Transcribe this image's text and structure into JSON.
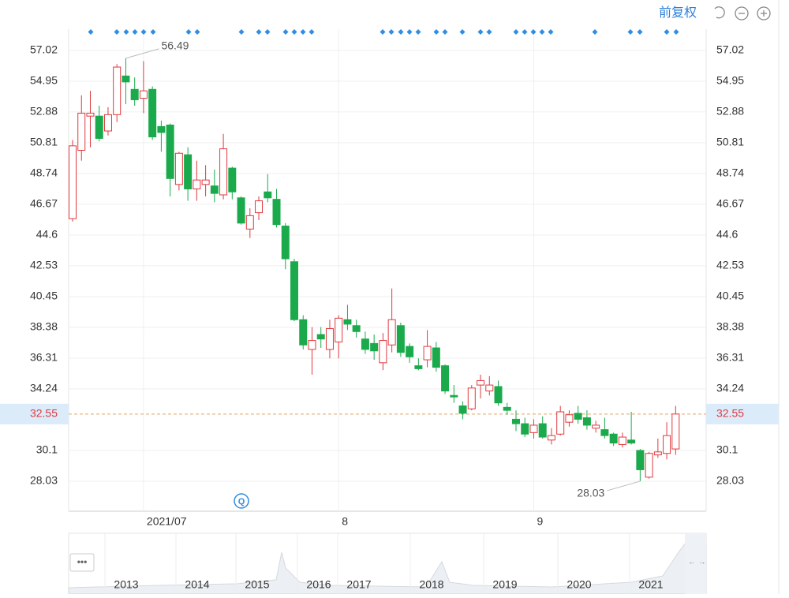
{
  "toolbar": {
    "adjust": "前复权"
  },
  "navigator": {
    "years": [
      "2013",
      "2014",
      "2015",
      "2016",
      "2017",
      "2018",
      "2019",
      "2020",
      "2021"
    ]
  },
  "chart_data": {
    "type": "candlestick",
    "categories": [
      null,
      null,
      null,
      null,
      null,
      null,
      null,
      null,
      "2021/07",
      null,
      null,
      null,
      null,
      null,
      null,
      null,
      null,
      null,
      null,
      null,
      null,
      null,
      null,
      null,
      null,
      null,
      null,
      null,
      null,
      null,
      "8",
      null,
      null,
      null,
      null,
      null,
      null,
      null,
      null,
      null,
      null,
      null,
      null,
      null,
      null,
      null,
      null,
      null,
      null,
      null,
      null,
      null,
      "9",
      null,
      null,
      null,
      null,
      null,
      null,
      null,
      null,
      null,
      null,
      null,
      null,
      null,
      null,
      null,
      null
    ],
    "open": [
      45.7,
      50.3,
      52.6,
      52.6,
      51.6,
      52.7,
      55.3,
      54.4,
      53.8,
      54.4,
      51.9,
      52.0,
      48.0,
      50.0,
      47.7,
      48.0,
      47.9,
      47.3,
      49.1,
      47.1,
      45.0,
      46.1,
      47.5,
      47.0,
      45.2,
      42.8,
      38.9,
      36.9,
      37.9,
      36.9,
      37.4,
      38.9,
      38.5,
      37.6,
      37.3,
      36.0,
      37.2,
      38.5,
      37.1,
      35.8,
      36.2,
      37.0,
      35.8,
      33.8,
      33.1,
      32.9,
      34.5,
      34.1,
      34.4,
      33.0,
      32.2,
      31.9,
      31.3,
      31.9,
      30.8,
      31.2,
      32.0,
      32.6,
      32.3,
      31.6,
      31.5,
      31.2,
      30.5,
      30.8,
      30.1,
      28.3,
      29.8,
      29.9,
      30.2
    ],
    "close": [
      50.6,
      52.8,
      52.8,
      51.1,
      52.7,
      55.9,
      54.9,
      53.7,
      54.3,
      51.2,
      51.5,
      48.4,
      50.1,
      47.7,
      48.3,
      48.3,
      47.4,
      50.4,
      47.5,
      45.4,
      45.9,
      46.9,
      47.1,
      45.3,
      43.0,
      38.9,
      37.2,
      37.5,
      37.6,
      38.3,
      39.0,
      38.6,
      38.1,
      36.9,
      36.8,
      37.5,
      38.9,
      36.7,
      36.4,
      35.6,
      37.1,
      35.7,
      34.1,
      33.7,
      32.6,
      34.3,
      34.8,
      34.5,
      33.3,
      32.8,
      31.9,
      31.2,
      31.8,
      31.0,
      31.1,
      32.7,
      32.5,
      32.2,
      31.8,
      31.8,
      31.1,
      30.6,
      31.0,
      30.6,
      28.8,
      29.9,
      30.0,
      31.1,
      32.55
    ],
    "high": [
      51.0,
      54.0,
      54.3,
      53.3,
      53.2,
      56.1,
      56.49,
      55.2,
      56.3,
      54.6,
      52.3,
      52.1,
      50.2,
      50.5,
      49.6,
      49.3,
      49.0,
      51.4,
      49.2,
      47.2,
      46.4,
      47.2,
      48.7,
      47.7,
      45.4,
      43.0,
      39.2,
      38.4,
      38.4,
      38.9,
      39.2,
      39.9,
      38.9,
      38.1,
      37.9,
      38.0,
      41.0,
      38.7,
      37.3,
      36.3,
      38.2,
      37.4,
      35.9,
      34.5,
      33.4,
      34.5,
      35.2,
      35.1,
      34.8,
      33.3,
      32.8,
      32.3,
      32.2,
      32.4,
      31.6,
      33.1,
      32.8,
      33.1,
      32.8,
      32.1,
      32.3,
      31.3,
      31.3,
      32.7,
      30.2,
      30.0,
      30.9,
      32.0,
      33.1
    ],
    "low": [
      45.5,
      49.6,
      50.5,
      50.9,
      51.3,
      52.2,
      53.4,
      53.3,
      52.8,
      51.0,
      50.2,
      47.2,
      47.6,
      46.9,
      46.9,
      47.2,
      46.8,
      47.0,
      47.0,
      45.3,
      44.4,
      45.6,
      46.8,
      45.1,
      42.3,
      38.8,
      36.9,
      35.2,
      37.0,
      36.3,
      36.3,
      38.2,
      37.7,
      36.6,
      36.2,
      35.5,
      36.7,
      36.4,
      36.0,
      35.5,
      35.7,
      35.4,
      33.9,
      33.3,
      32.2,
      32.8,
      33.6,
      33.8,
      33.1,
      32.5,
      31.4,
      31.0,
      30.9,
      30.9,
      30.5,
      31.1,
      31.7,
      31.9,
      31.5,
      31.3,
      30.9,
      30.4,
      30.3,
      30.5,
      28.03,
      28.2,
      29.6,
      29.5,
      29.8
    ],
    "up_color": "#e0393e",
    "down_color": "#1aaa4c",
    "ylim": [
      26.01,
      58.45
    ],
    "yticks": [
      28.03,
      30.1,
      34.24,
      36.31,
      38.38,
      40.45,
      42.53,
      44.6,
      46.67,
      48.74,
      50.81,
      52.88,
      54.95,
      57.02
    ],
    "current_price": 32.55,
    "grid": true
  }
}
